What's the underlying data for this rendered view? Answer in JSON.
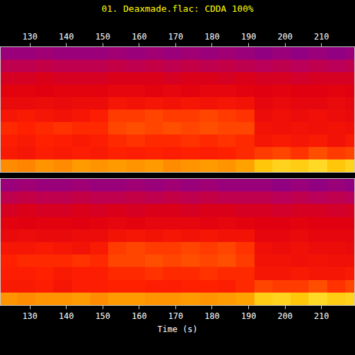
{
  "chart_data": {
    "type": "heatmap",
    "title": "01. Deaxmade.flac: CDDA 100%",
    "x_label": "Time (s)",
    "xlim": [
      122,
      219
    ],
    "xticks": [
      130,
      140,
      150,
      160,
      170,
      180,
      190,
      200,
      210
    ],
    "zlim": [
      0,
      100
    ],
    "grid": false,
    "tick_labels": "x",
    "x": [
      124,
      129,
      134,
      139,
      144,
      149,
      154,
      159,
      164,
      169,
      174,
      179,
      184,
      189,
      194,
      199,
      204,
      209,
      214,
      219
    ],
    "cells": [
      [
        [
          78,
          77,
          79,
          78,
          80,
          79,
          80,
          79,
          80,
          78,
          79,
          80,
          79,
          81,
          86,
          88,
          87,
          89,
          86,
          88
        ],
        [
          63,
          62,
          64,
          63,
          64,
          63,
          65,
          64,
          65,
          64,
          65,
          64,
          65,
          66,
          68,
          69,
          67,
          70,
          68,
          69
        ],
        [
          64,
          63,
          65,
          64,
          63,
          64,
          66,
          67,
          66,
          66,
          67,
          66,
          67,
          66,
          62,
          63,
          62,
          63,
          61,
          63
        ],
        [
          66,
          65,
          66,
          67,
          66,
          66,
          69,
          70,
          69,
          70,
          69,
          70,
          69,
          69,
          61,
          60,
          61,
          60,
          61,
          60
        ],
        [
          62,
          63,
          62,
          61,
          62,
          64,
          68,
          68,
          69,
          68,
          68,
          69,
          68,
          67,
          59,
          60,
          59,
          60,
          59,
          58
        ],
        [
          58,
          58,
          59,
          58,
          59,
          59,
          62,
          61,
          62,
          61,
          62,
          61,
          62,
          61,
          57,
          58,
          57,
          57,
          58,
          57
        ],
        [
          56,
          56,
          55,
          56,
          56,
          56,
          57,
          57,
          56,
          57,
          56,
          57,
          57,
          56,
          55,
          56,
          55,
          55,
          56,
          55
        ],
        [
          53,
          53,
          54,
          53,
          53,
          53,
          54,
          54,
          54,
          53,
          54,
          54,
          53,
          54,
          53,
          53,
          52,
          53,
          53,
          53
        ],
        [
          48,
          48,
          49,
          48,
          48,
          48,
          49,
          48,
          49,
          48,
          49,
          48,
          49,
          48,
          47,
          48,
          47,
          48,
          47,
          48
        ],
        [
          42,
          42,
          43,
          42,
          42,
          42,
          43,
          42,
          43,
          42,
          43,
          42,
          43,
          42,
          41,
          42,
          41,
          42,
          41,
          42
        ]
      ],
      [
        [
          79,
          78,
          79,
          79,
          80,
          78,
          80,
          80,
          79,
          79,
          80,
          79,
          80,
          81,
          87,
          88,
          86,
          89,
          87,
          88
        ],
        [
          63,
          63,
          64,
          62,
          64,
          64,
          65,
          65,
          64,
          64,
          65,
          65,
          64,
          66,
          69,
          68,
          68,
          70,
          67,
          69
        ],
        [
          64,
          64,
          65,
          63,
          64,
          64,
          66,
          66,
          67,
          66,
          66,
          67,
          66,
          66,
          62,
          62,
          63,
          62,
          62,
          63
        ],
        [
          65,
          66,
          66,
          66,
          67,
          66,
          69,
          69,
          70,
          69,
          70,
          69,
          70,
          68,
          61,
          61,
          60,
          61,
          60,
          60
        ],
        [
          62,
          62,
          63,
          62,
          61,
          63,
          68,
          69,
          68,
          68,
          69,
          68,
          69,
          67,
          60,
          59,
          60,
          59,
          59,
          58
        ],
        [
          58,
          59,
          58,
          58,
          59,
          59,
          61,
          62,
          61,
          62,
          61,
          62,
          61,
          61,
          57,
          57,
          58,
          57,
          57,
          57
        ],
        [
          56,
          55,
          56,
          56,
          55,
          56,
          57,
          56,
          57,
          57,
          57,
          56,
          57,
          56,
          55,
          55,
          56,
          55,
          55,
          55
        ],
        [
          53,
          54,
          53,
          53,
          54,
          53,
          54,
          53,
          54,
          54,
          53,
          54,
          54,
          53,
          53,
          52,
          53,
          53,
          52,
          53
        ],
        [
          48,
          49,
          48,
          48,
          49,
          48,
          48,
          49,
          48,
          49,
          48,
          49,
          48,
          48,
          48,
          47,
          48,
          47,
          48,
          47
        ],
        [
          42,
          43,
          42,
          42,
          43,
          42,
          42,
          43,
          42,
          43,
          42,
          43,
          42,
          42,
          42,
          41,
          42,
          41,
          42,
          41
        ]
      ]
    ]
  }
}
